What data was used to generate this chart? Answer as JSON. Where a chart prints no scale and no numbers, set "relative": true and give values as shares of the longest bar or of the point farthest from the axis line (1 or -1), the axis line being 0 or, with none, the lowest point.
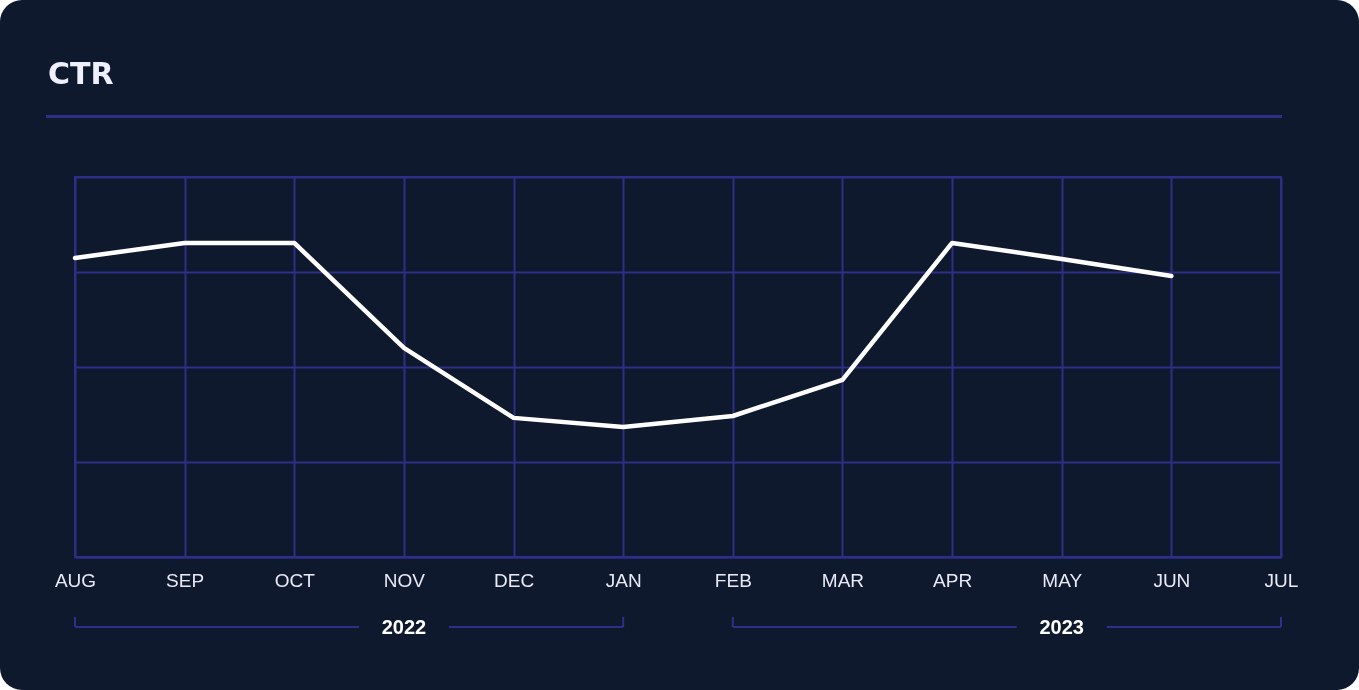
{
  "chart_data": {
    "type": "line",
    "title": "CTR",
    "categories": [
      "AUG",
      "SEP",
      "OCT",
      "NOV",
      "DEC",
      "JAN",
      "FEB",
      "MAR",
      "APR",
      "MAY",
      "JUN",
      "JUL"
    ],
    "series": [
      {
        "color": "#ffffff",
        "values": [
          0.952,
          1,
          1,
          0.666,
          0.443,
          0.414,
          0.449,
          0.564,
          1,
          0.949,
          0.895,
          null
        ]
      }
    ],
    "relative": true,
    "grid": true,
    "marker": "none",
    "line_style": "solid",
    "annotations": [
      "2022",
      "2023"
    ]
  }
}
